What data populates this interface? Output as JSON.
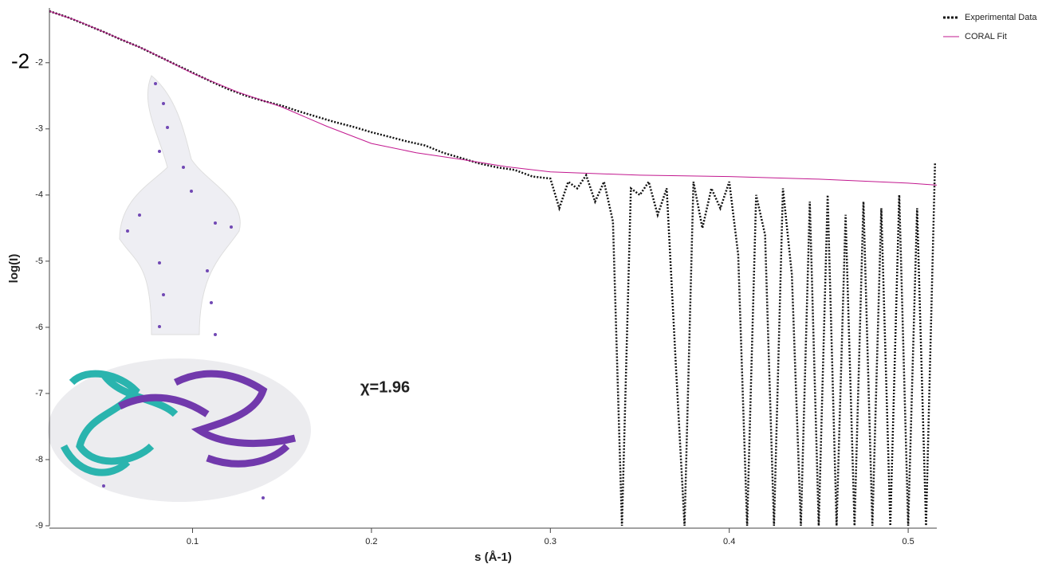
{
  "chart_data": {
    "type": "line",
    "x_label": "s (Å-1)",
    "y_label": "log(I)",
    "xlim": [
      0.02,
      0.516
    ],
    "ylim": [
      -9,
      -1.22
    ],
    "xticks": [
      0.1,
      0.2,
      0.3,
      0.4,
      0.5
    ],
    "yticks": [
      -2,
      -3,
      -4,
      -5,
      -6,
      -7,
      -8,
      -9
    ],
    "legend": "top-right",
    "annotations": [
      {
        "text": "χ=1.96"
      },
      {
        "text": "-2"
      }
    ],
    "series": [
      {
        "name": "Experimental Data",
        "color": "#111111",
        "dotted": true,
        "x": [
          0.02,
          0.03,
          0.04,
          0.05,
          0.06,
          0.07,
          0.08,
          0.09,
          0.1,
          0.11,
          0.12,
          0.13,
          0.14,
          0.15,
          0.16,
          0.17,
          0.18,
          0.19,
          0.2,
          0.21,
          0.22,
          0.23,
          0.24,
          0.25,
          0.26,
          0.27,
          0.28,
          0.29,
          0.3,
          0.305,
          0.31,
          0.315,
          0.32,
          0.325,
          0.33,
          0.335,
          0.34,
          0.345,
          0.35,
          0.355,
          0.36,
          0.365,
          0.37,
          0.375,
          0.38,
          0.385,
          0.39,
          0.395,
          0.4,
          0.405,
          0.41,
          0.415,
          0.42,
          0.425,
          0.43,
          0.435,
          0.44,
          0.445,
          0.45,
          0.455,
          0.46,
          0.465,
          0.47,
          0.475,
          0.48,
          0.485,
          0.49,
          0.495,
          0.5,
          0.505,
          0.51,
          0.515
        ],
        "values": [
          -1.22,
          -1.31,
          -1.42,
          -1.53,
          -1.65,
          -1.76,
          -1.89,
          -2.02,
          -2.15,
          -2.28,
          -2.4,
          -2.5,
          -2.58,
          -2.65,
          -2.74,
          -2.82,
          -2.9,
          -2.97,
          -3.05,
          -3.12,
          -3.19,
          -3.25,
          -3.36,
          -3.44,
          -3.52,
          -3.58,
          -3.62,
          -3.72,
          -3.75,
          -4.2,
          -3.8,
          -3.9,
          -3.7,
          -4.1,
          -3.8,
          -4.4,
          -9,
          -3.9,
          -4,
          -3.8,
          -4.3,
          -3.9,
          -6.5,
          -9,
          -3.8,
          -4.5,
          -3.9,
          -4.2,
          -3.8,
          -4.9,
          -9,
          -4,
          -4.6,
          -9,
          -3.9,
          -5.2,
          -9,
          -4.1,
          -9,
          -4,
          -9,
          -4.3,
          -9,
          -4.1,
          -9,
          -4.2,
          -9,
          -4,
          -9,
          -4.2,
          -9,
          -3.5
        ]
      },
      {
        "name": "CORAL Fit",
        "color": "#c2188f",
        "x": [
          0.02,
          0.035,
          0.05,
          0.075,
          0.1,
          0.125,
          0.15,
          0.175,
          0.2,
          0.225,
          0.25,
          0.275,
          0.3,
          0.35,
          0.4,
          0.45,
          0.5,
          0.516
        ],
        "values": [
          -1.22,
          -1.36,
          -1.53,
          -1.82,
          -2.16,
          -2.44,
          -2.67,
          -2.96,
          -3.22,
          -3.36,
          -3.46,
          -3.57,
          -3.65,
          -3.7,
          -3.72,
          -3.76,
          -3.82,
          -3.85
        ]
      }
    ]
  }
}
